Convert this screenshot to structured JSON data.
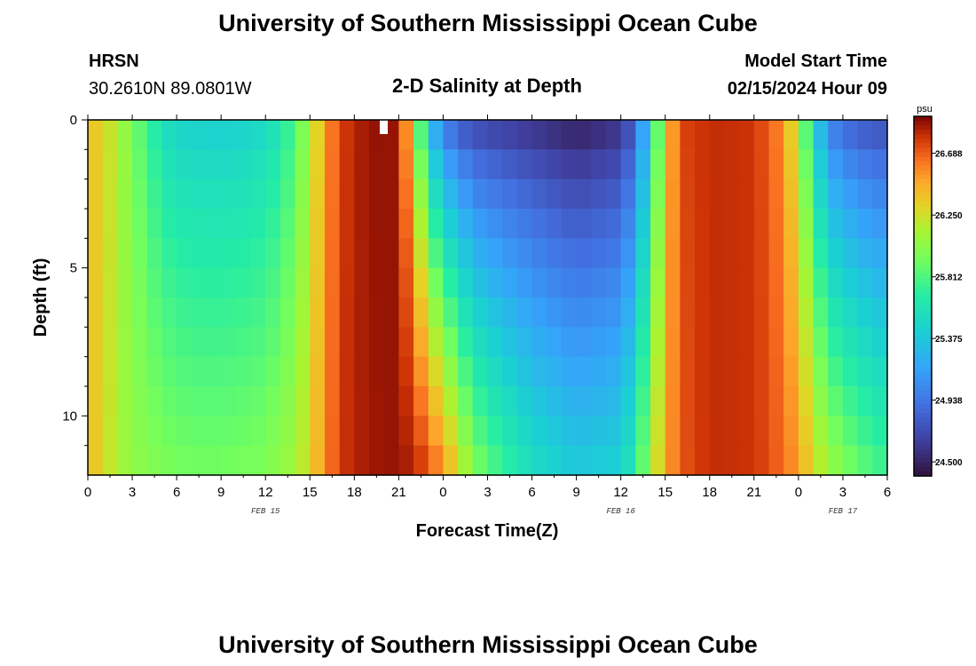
{
  "header": {
    "title": "University of Southern Mississippi Ocean Cube",
    "station": "HRSN",
    "coords": "30.2610N  89.0801W",
    "subtitle": "2-D Salinity at Depth",
    "model_label": "Model Start Time",
    "model_time": "02/15/2024 Hour 09"
  },
  "footer": {
    "title": "University of Southern Mississippi Ocean Cube"
  },
  "chart_data": {
    "type": "heatmap",
    "xlabel": "Forecast Time(Z)",
    "ylabel": "Depth (ft)",
    "x_tick_labels": [
      "0",
      "3",
      "6",
      "9",
      "12",
      "15",
      "18",
      "21",
      "0",
      "3",
      "6",
      "9",
      "12",
      "15",
      "18",
      "21",
      "0",
      "3",
      "6"
    ],
    "x_range_hours": [
      0,
      54
    ],
    "date_labels": [
      {
        "text": "FEB 15",
        "hour": 12
      },
      {
        "text": "FEB 16",
        "hour": 36
      },
      {
        "text": "FEB 17",
        "hour": 51
      }
    ],
    "y_tick_labels": [
      "0",
      "5",
      "10"
    ],
    "y_range_ft": [
      0,
      12
    ],
    "depth_levels": 12,
    "colorbar": {
      "unit": "psu",
      "ticks": [
        "26.688",
        "26.250",
        "25.812",
        "25.375",
        "24.938",
        "24.500"
      ],
      "min": 24.4,
      "max": 26.95
    },
    "salinity_columns": [
      {
        "hour": 0,
        "surface": 26.4,
        "bottom": 26.4
      },
      {
        "hour": 1,
        "surface": 26.3,
        "bottom": 26.3
      },
      {
        "hour": 2,
        "surface": 26.15,
        "bottom": 26.12
      },
      {
        "hour": 3,
        "surface": 25.95,
        "bottom": 26.05
      },
      {
        "hour": 4,
        "surface": 25.75,
        "bottom": 26.0
      },
      {
        "hour": 5,
        "surface": 25.55,
        "bottom": 25.98
      },
      {
        "hour": 6,
        "surface": 25.45,
        "bottom": 25.95
      },
      {
        "hour": 8,
        "surface": 25.42,
        "bottom": 25.93
      },
      {
        "hour": 10,
        "surface": 25.42,
        "bottom": 25.95
      },
      {
        "hour": 12,
        "surface": 25.48,
        "bottom": 25.98
      },
      {
        "hour": 13,
        "surface": 25.6,
        "bottom": 26.05
      },
      {
        "hour": 14,
        "surface": 25.8,
        "bottom": 26.1
      },
      {
        "hour": 15,
        "surface": 26.1,
        "bottom": 26.3
      },
      {
        "hour": 16,
        "surface": 26.5,
        "bottom": 26.55
      },
      {
        "hour": 17,
        "surface": 26.75,
        "bottom": 26.78
      },
      {
        "hour": 18,
        "surface": 26.85,
        "bottom": 26.85
      },
      {
        "hour": 20,
        "surface": 26.92,
        "bottom": 26.9
      },
      {
        "hour": 21,
        "surface": 26.88,
        "bottom": 26.9
      },
      {
        "hour": 22,
        "surface": 26.2,
        "bottom": 26.85
      },
      {
        "hour": 23,
        "surface": 25.3,
        "bottom": 26.75
      },
      {
        "hour": 24,
        "surface": 24.9,
        "bottom": 26.55
      },
      {
        "hour": 25,
        "surface": 24.75,
        "bottom": 26.3
      },
      {
        "hour": 26,
        "surface": 24.65,
        "bottom": 26.0
      },
      {
        "hour": 28,
        "surface": 24.6,
        "bottom": 25.75
      },
      {
        "hour": 30,
        "surface": 24.55,
        "bottom": 25.55
      },
      {
        "hour": 33,
        "surface": 24.45,
        "bottom": 25.4
      },
      {
        "hour": 36,
        "surface": 24.55,
        "bottom": 25.45
      },
      {
        "hour": 37,
        "surface": 24.8,
        "bottom": 25.7
      },
      {
        "hour": 38,
        "surface": 25.4,
        "bottom": 26.1
      },
      {
        "hour": 39,
        "surface": 26.3,
        "bottom": 26.45
      },
      {
        "hour": 40,
        "surface": 26.75,
        "bottom": 26.7
      },
      {
        "hour": 42,
        "surface": 26.82,
        "bottom": 26.82
      },
      {
        "hour": 45,
        "surface": 26.8,
        "bottom": 26.8
      },
      {
        "hour": 47,
        "surface": 26.55,
        "bottom": 26.65
      },
      {
        "hour": 48,
        "surface": 26.1,
        "bottom": 26.5
      },
      {
        "hour": 49,
        "surface": 25.5,
        "bottom": 26.3
      },
      {
        "hour": 50,
        "surface": 24.95,
        "bottom": 26.1
      },
      {
        "hour": 52,
        "surface": 24.75,
        "bottom": 25.9
      },
      {
        "hour": 54,
        "surface": 24.7,
        "bottom": 25.75
      }
    ],
    "colors": {
      "frame": "#000000",
      "missing_cell": "#ffffff"
    }
  }
}
